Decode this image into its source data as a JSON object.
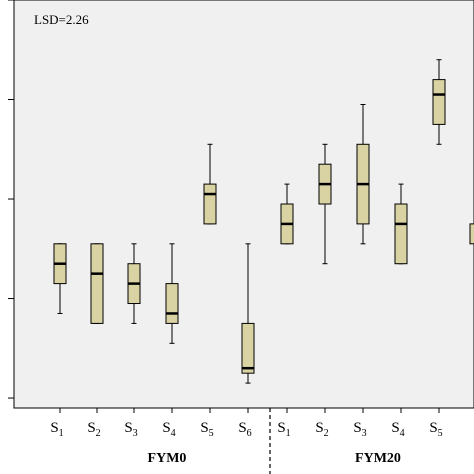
{
  "chart_data": {
    "type": "boxplot",
    "annotation": "LSD=2.26",
    "group_labels": [
      "FYM0",
      "FYM20"
    ],
    "categories": [
      {
        "main": "S",
        "sub": "1",
        "group": "FYM0"
      },
      {
        "main": "S",
        "sub": "2",
        "group": "FYM0"
      },
      {
        "main": "S",
        "sub": "3",
        "group": "FYM0"
      },
      {
        "main": "S",
        "sub": "4",
        "group": "FYM0"
      },
      {
        "main": "S",
        "sub": "5",
        "group": "FYM0"
      },
      {
        "main": "S",
        "sub": "6",
        "group": "FYM0"
      },
      {
        "main": "S",
        "sub": "1",
        "group": "FYM20"
      },
      {
        "main": "S",
        "sub": "2",
        "group": "FYM20"
      },
      {
        "main": "S",
        "sub": "3",
        "group": "FYM20"
      },
      {
        "main": "S",
        "sub": "4",
        "group": "FYM20"
      },
      {
        "main": "S",
        "sub": "5",
        "group": "FYM20"
      }
    ],
    "boxes": [
      {
        "min": 12.2,
        "q1": 12.8,
        "median": 13.2,
        "q3": 13.6,
        "max": 13.6
      },
      {
        "min": 12.0,
        "q1": 12.0,
        "median": 13.0,
        "q3": 13.6,
        "max": 13.6
      },
      {
        "min": 12.0,
        "q1": 12.4,
        "median": 12.8,
        "q3": 13.2,
        "max": 13.6
      },
      {
        "min": 11.6,
        "q1": 12.0,
        "median": 12.2,
        "q3": 12.8,
        "max": 13.6
      },
      {
        "min": 14.0,
        "q1": 14.0,
        "median": 14.6,
        "q3": 14.8,
        "max": 15.6
      },
      {
        "min": 10.8,
        "q1": 11.0,
        "median": 11.1,
        "q3": 12.0,
        "max": 13.6
      },
      {
        "min": 13.6,
        "q1": 13.6,
        "median": 14.0,
        "q3": 14.4,
        "max": 14.8
      },
      {
        "min": 13.2,
        "q1": 14.4,
        "median": 14.8,
        "q3": 15.2,
        "max": 15.6
      },
      {
        "min": 13.6,
        "q1": 14.0,
        "median": 14.8,
        "q3": 15.6,
        "max": 16.4
      },
      {
        "min": 13.2,
        "q1": 13.2,
        "median": 14.0,
        "q3": 14.4,
        "max": 14.8
      },
      {
        "min": 15.6,
        "q1": 16.0,
        "median": 16.6,
        "q3": 16.9,
        "max": 17.3
      }
    ],
    "partial_box": {
      "q1": 13.6,
      "q3": 14.0
    },
    "ylim": [
      10.3,
      18.5
    ],
    "yticks": [
      10.5,
      12.5,
      14.5,
      16.5,
      18.5
    ],
    "box_fill": "#d9d3a3",
    "plot_background": "#f0f0f0"
  }
}
